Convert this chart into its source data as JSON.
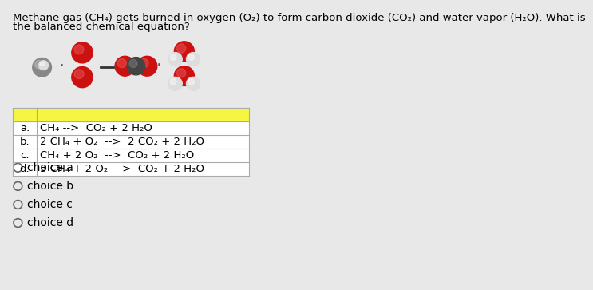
{
  "title_line1": "Methane gas (CH₄) gets burned in oxygen (O₂) to form carbon dioxide (CO₂) and water vapor (H₂O). What is",
  "title_line2": "the balanced chemical equation?",
  "bg_color": "#e8e8e8",
  "table_header_color": "#f5f542",
  "table_bg_color": "#ffffff",
  "table_border_color": "#aaaaaa",
  "rows": [
    [
      "a.",
      "CH₄ -->  CO₂ + 2 H₂O"
    ],
    [
      "b.",
      "2 CH₄ + O₂  -->  2 CO₂ + 2 H₂O"
    ],
    [
      "c.",
      "CH₄ + 2 O₂  -->  CO₂ + 2 H₂O"
    ],
    [
      "d.",
      "3 CH₄ + 2 O₂  -->  CO₂ + 2 H₂O"
    ]
  ],
  "choices": [
    "choice a",
    "choice b",
    "choice c",
    "choice d"
  ],
  "font_size_title": 9.5,
  "font_size_table": 9.5,
  "font_size_choice": 10,
  "mol_red": "#cc1111",
  "mol_red_dark": "#991111",
  "mol_gray": "#888888",
  "mol_gray_dark": "#555555",
  "mol_white": "#dddddd",
  "mol_white_dark": "#aaaaaa"
}
